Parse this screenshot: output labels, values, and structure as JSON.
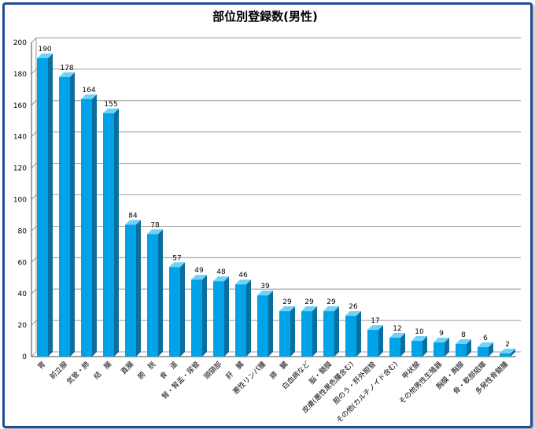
{
  "chart_data": {
    "type": "bar",
    "title": "部位別登録数(男性)",
    "categories": [
      "胃",
      "前立腺",
      "気管・肺",
      "結　腸",
      "直腸",
      "膀　胱",
      "食　道",
      "腎・腎盂・尿管",
      "頭頸部",
      "肝　臓",
      "悪性リンパ腫",
      "膵　臓",
      "白血病など",
      "脳・髄膜",
      "皮膚(悪性黒色腫含む)",
      "胆のう・肝外胆管",
      "その他(カルチノイド含む)",
      "甲状腺",
      "その他男性生殖器",
      "胸膜・胸腺",
      "骨・軟部組織",
      "多発性骨髄腫"
    ],
    "values": [
      190,
      178,
      164,
      155,
      84,
      78,
      57,
      49,
      48,
      46,
      39,
      29,
      29,
      29,
      26,
      17,
      12,
      10,
      9,
      8,
      6,
      2
    ],
    "ylim": [
      0,
      200
    ],
    "yticks": [
      0,
      20,
      40,
      60,
      80,
      100,
      120,
      140,
      160,
      180,
      200
    ],
    "grid": true,
    "colors": {
      "bar": "#00a2e8",
      "bar_side": "#0a6f9e",
      "bar_top": "#6fd3f7",
      "grid": "#7f7f7f",
      "frame": "#1f4e96"
    }
  }
}
